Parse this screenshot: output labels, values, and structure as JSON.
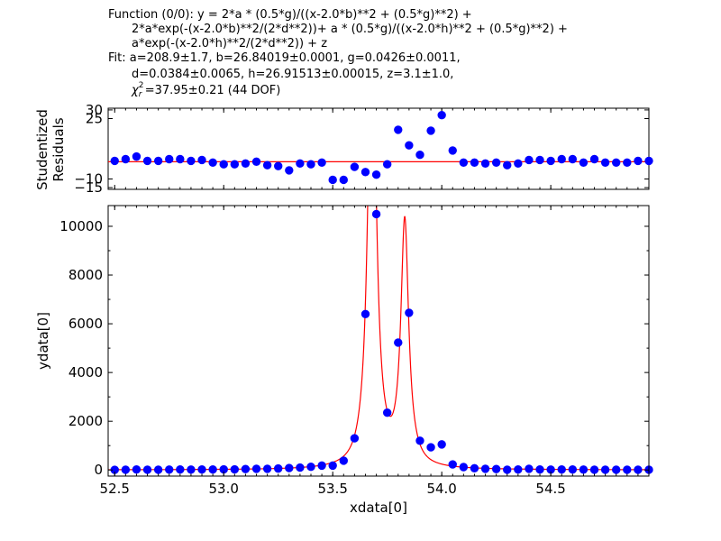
{
  "header": {
    "function_line1": "Function (0/0): y = 2*a * (0.5*g)/((x-2.0*b)**2 + (0.5*g)**2) +",
    "function_line2": "2*a*exp(-(x-2.0*b)**2/(2*d**2))+ a * (0.5*g)/((x-2.0*h)**2 + (0.5*g)**2) +",
    "function_line3": "a*exp(-(x-2.0*h)**2/(2*d**2)) + z",
    "fit_line1": "Fit: a=208.9±1.7, b=26.84019±0.0001, g=0.0426±0.0011,",
    "fit_line2": "d=0.0384±0.0065, h=26.91513±0.00015, z=3.1±1.0,",
    "chi_symbol": "χ",
    "chi_sub": "r",
    "chi_sup": "2",
    "chi_value": "=37.95±0.21 (44 DOF)"
  },
  "colors": {
    "points": "#0000ff",
    "curve": "#ff0000",
    "axes": "#000000"
  },
  "chart_data": [
    {
      "type": "scatter",
      "title": "",
      "xlabel": "",
      "ylabel": "Studentized Residuals",
      "ylabel_lines": [
        "Studentized",
        "Residuals"
      ],
      "xlim": [
        52.47,
        54.95
      ],
      "ylim": [
        -16,
        31
      ],
      "yticks": [
        -15,
        -10,
        25,
        30
      ],
      "x_ticklabels_visible": false,
      "zero_line": 0,
      "series": [
        {
          "x": [
            52.5,
            52.55,
            52.6,
            52.65,
            52.7,
            52.75,
            52.8,
            52.85,
            52.9,
            52.95,
            53.0,
            53.05,
            53.1,
            53.15,
            53.2,
            53.25,
            53.3,
            53.35,
            53.4,
            53.45,
            53.5,
            53.55,
            53.6,
            53.65,
            53.7,
            53.75,
            53.8,
            53.85,
            53.9,
            53.95,
            54.0,
            54.05,
            54.1,
            54.15,
            54.2,
            54.25,
            54.3,
            54.35,
            54.4,
            54.45,
            54.5,
            54.55,
            54.6,
            54.65,
            54.7,
            54.75,
            54.8,
            54.85,
            54.9,
            54.95
          ],
          "y": [
            0.5,
            1.5,
            3.0,
            0.5,
            0.5,
            1.5,
            1.5,
            0.5,
            1.0,
            -0.5,
            -1.5,
            -1.5,
            -1.0,
            0.0,
            -2.0,
            -2.5,
            -5.0,
            -1.0,
            -1.5,
            -0.5,
            -10.5,
            -10.5,
            -3.0,
            -6.0,
            -7.5,
            -1.5,
            18.5,
            9.5,
            4.0,
            18.0,
            27.0,
            6.5,
            -0.5,
            -0.5,
            -1.0,
            -0.5,
            -2.0,
            -1.0,
            1.0,
            1.0,
            0.5,
            1.5,
            1.5,
            -0.5,
            1.5,
            -0.5,
            -0.5,
            -0.5,
            0.5,
            0.5
          ]
        }
      ]
    },
    {
      "type": "scatter",
      "title": "",
      "xlabel": "xdata[0]",
      "ylabel": "ydata[0]",
      "xlim": [
        52.47,
        54.95
      ],
      "ylim": [
        -250,
        10850
      ],
      "xticks": [
        52.5,
        53.0,
        53.5,
        54.0,
        54.5
      ],
      "xticklabels": [
        "52.5",
        "53.0",
        "53.5",
        "54.0",
        "54.5"
      ],
      "yticks": [
        0,
        2000,
        4000,
        6000,
        8000,
        10000
      ],
      "yticklabels": [
        "0",
        "2000",
        "4000",
        "6000",
        "8000",
        "10000"
      ],
      "series": [
        {
          "x": [
            52.5,
            52.55,
            52.6,
            52.65,
            52.7,
            52.75,
            52.8,
            52.85,
            52.9,
            52.95,
            53.0,
            53.05,
            53.1,
            53.15,
            53.2,
            53.25,
            53.3,
            53.35,
            53.4,
            53.45,
            53.5,
            53.55,
            53.6,
            53.65,
            53.7,
            53.75,
            53.8,
            53.85,
            53.9,
            53.95,
            54.0,
            54.05,
            54.1,
            54.15,
            54.2,
            54.25,
            54.3,
            54.35,
            54.4,
            54.45,
            54.5,
            54.55,
            54.6,
            54.65,
            54.7,
            54.75,
            54.8,
            54.85,
            54.9,
            54.95
          ],
          "y": [
            5,
            10,
            20,
            10,
            10,
            15,
            20,
            15,
            20,
            20,
            25,
            25,
            40,
            50,
            50,
            60,
            80,
            100,
            130,
            180,
            180,
            380,
            1300,
            6400,
            10500,
            2350,
            5230,
            6450,
            1200,
            930,
            1050,
            230,
            120,
            70,
            50,
            40,
            10,
            20,
            50,
            20,
            15,
            20,
            20,
            15,
            10,
            10,
            10,
            10,
            10,
            10
          ]
        },
        {
          "model": "fit",
          "params": {
            "a": 208.9,
            "b": 26.84019,
            "g": 0.0426,
            "d": 0.0384,
            "h": 26.91513,
            "z": 3.1
          }
        }
      ]
    }
  ]
}
